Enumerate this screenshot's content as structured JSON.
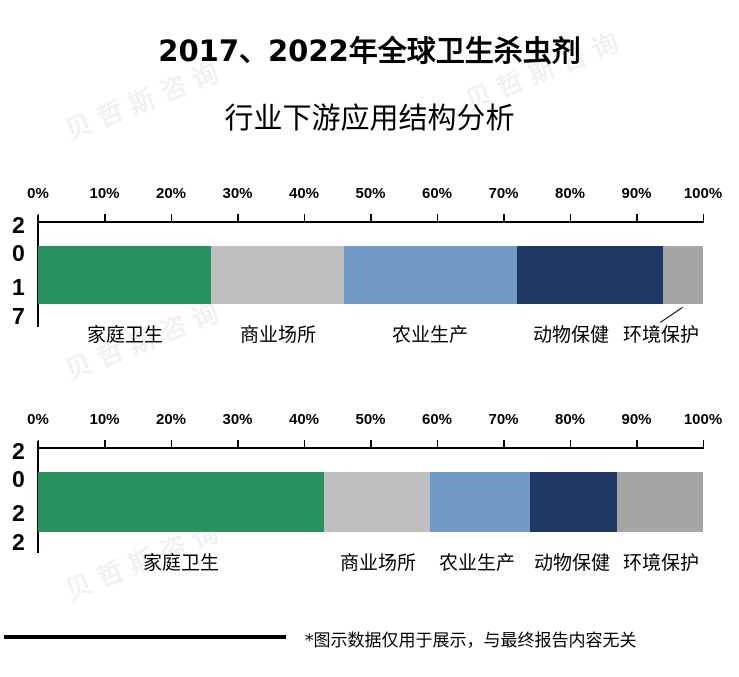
{
  "title": {
    "line1": "2017、2022年全球卫生杀虫剂",
    "line2": "行业下游应用结构分析"
  },
  "watermark": "贝哲斯咨询",
  "axis": {
    "ticks": [
      "0%",
      "10%",
      "20%",
      "30%",
      "40%",
      "50%",
      "60%",
      "70%",
      "80%",
      "90%",
      "100%"
    ]
  },
  "colors": {
    "家庭卫生": "#27925E",
    "商业场所": "#BFBFBF",
    "农业生产": "#7399C6",
    "动物保健": "#1F3864",
    "环境保护": "#A5A5A5"
  },
  "chart_data": {
    "type": "bar",
    "orientation": "horizontal",
    "stacked": "percent",
    "title": "2017、2022年全球卫生杀虫剂行业下游应用结构分析",
    "categories": [
      "2017",
      "2022"
    ],
    "xlim": [
      0,
      100
    ],
    "xtick_labels": [
      "0%",
      "10%",
      "20%",
      "30%",
      "40%",
      "50%",
      "60%",
      "70%",
      "80%",
      "90%",
      "100%"
    ],
    "series": [
      {
        "name": "家庭卫生",
        "values": [
          26,
          43
        ],
        "color": "#27925E"
      },
      {
        "name": "商业场所",
        "values": [
          20,
          16
        ],
        "color": "#BFBFBF"
      },
      {
        "name": "农业生产",
        "values": [
          26,
          15
        ],
        "color": "#7399C6"
      },
      {
        "name": "动物保健",
        "values": [
          22,
          13
        ],
        "color": "#1F3864"
      },
      {
        "name": "环境保护",
        "values": [
          6,
          13
        ],
        "color": "#A5A5A5"
      }
    ],
    "legend": "data labels below bars",
    "grid": false
  },
  "charts": [
    {
      "year": "2017",
      "year_digits": [
        "2",
        "0",
        "1",
        "7"
      ],
      "segments": [
        {
          "label": "家庭卫生",
          "value": 26
        },
        {
          "label": "商业场所",
          "value": 20
        },
        {
          "label": "农业生产",
          "value": 26
        },
        {
          "label": "动物保健",
          "value": 22
        },
        {
          "label": "环境保护",
          "value": 6
        }
      ]
    },
    {
      "year": "2022",
      "year_digits": [
        "2",
        "0",
        "2",
        "2"
      ],
      "segments": [
        {
          "label": "家庭卫生",
          "value": 43
        },
        {
          "label": "商业场所",
          "value": 16
        },
        {
          "label": "农业生产",
          "value": 15
        },
        {
          "label": "动物保健",
          "value": 13
        },
        {
          "label": "环境保护",
          "value": 13
        }
      ]
    }
  ],
  "footer": {
    "note": "*图示数据仅用于展示，与最终报告内容无关"
  }
}
